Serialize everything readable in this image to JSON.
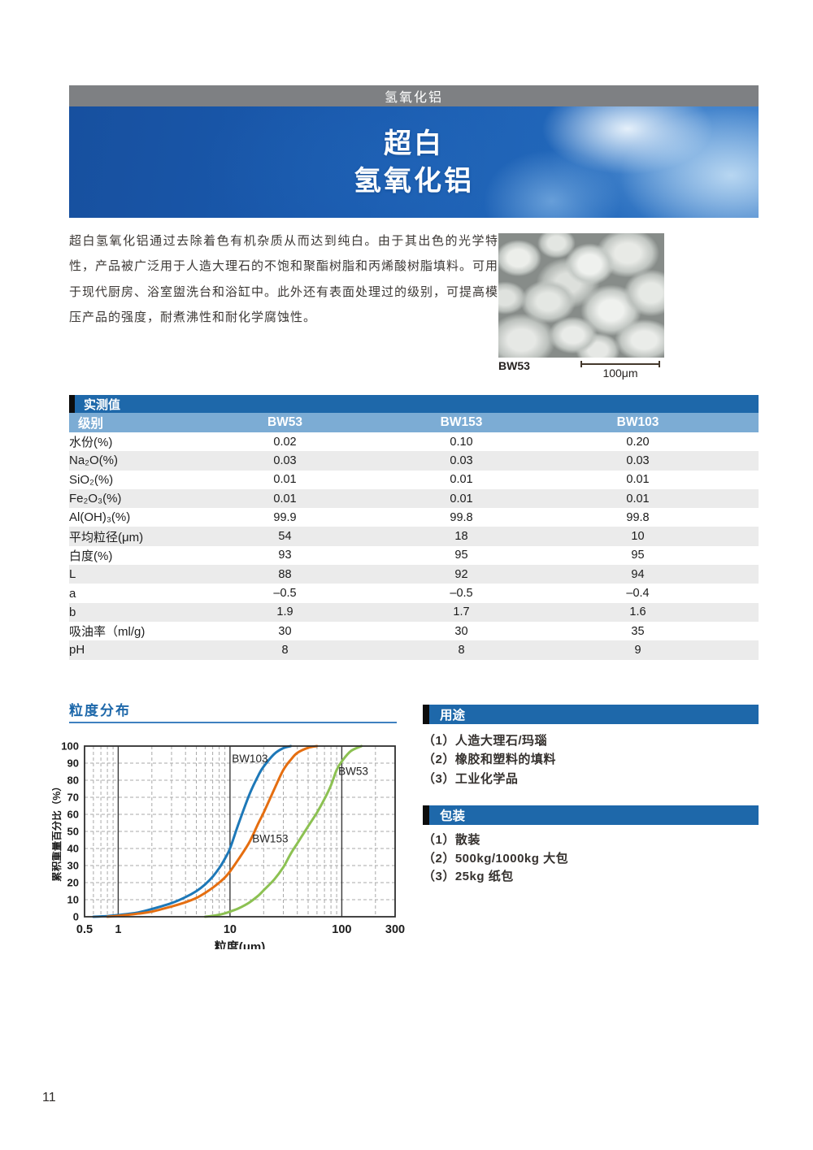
{
  "page": {
    "number": "11"
  },
  "header": {
    "category": "氢氧化铝",
    "title_line1": "超白",
    "title_line2": "氢氧化铝"
  },
  "intro": {
    "text": "超白氢氧化铝通过去除着色有机杂质从而达到纯白。由于其出色的光学特性，产品被广泛用于人造大理石的不饱和聚酯树脂和丙烯酸树脂填料。可用于现代厨房、浴室盥洗台和浴缸中。此外还有表面处理过的级别，可提高模压产品的强度，耐煮沸性和耐化学腐蚀性。"
  },
  "figure": {
    "label": "BW53",
    "scale_label": "100μm"
  },
  "table": {
    "title": "实测值",
    "grade_label": "级别",
    "columns": [
      "BW53",
      "BW153",
      "BW103"
    ],
    "rows": [
      {
        "label": "水份(%)",
        "values": [
          "0.02",
          "0.10",
          "0.20"
        ]
      },
      {
        "label": "Na₂O(%)",
        "values": [
          "0.03",
          "0.03",
          "0.03"
        ]
      },
      {
        "label": "SiO₂(%)",
        "values": [
          "0.01",
          "0.01",
          "0.01"
        ]
      },
      {
        "label": "Fe₂O₃(%)",
        "values": [
          "0.01",
          "0.01",
          "0.01"
        ]
      },
      {
        "label": "Al(OH)₃(%)",
        "values": [
          "99.9",
          "99.8",
          "99.8"
        ]
      },
      {
        "label": "平均粒径(μm)",
        "values": [
          "54",
          "18",
          "10"
        ]
      },
      {
        "label": "白度(%)",
        "values": [
          "93",
          "95",
          "95"
        ]
      },
      {
        "label": "L",
        "values": [
          "88",
          "92",
          "94"
        ]
      },
      {
        "label": "a",
        "values": [
          "–0.5",
          "–0.5",
          "–0.4"
        ]
      },
      {
        "label": "b",
        "values": [
          "1.9",
          "1.7",
          "1.6"
        ]
      },
      {
        "label": "吸油率（ml/g)",
        "values": [
          "30",
          "30",
          "35"
        ]
      },
      {
        "label": "pH",
        "values": [
          "8",
          "8",
          "9"
        ]
      }
    ]
  },
  "applications": {
    "title": "用途",
    "items": [
      "（1）人造大理石/玛瑙",
      "（2）橡胶和塑料的填料",
      "（3）工业化学品"
    ]
  },
  "packaging": {
    "title": "包装",
    "items": [
      "（1）散装",
      "（2）500kg/1000kg 大包",
      "（3）25kg 纸包"
    ]
  },
  "chart_data": {
    "type": "line",
    "title": "粒度分布",
    "xlabel": "粒度(μm)",
    "ylabel": "累积重量百分比（%）",
    "x_scale": "log",
    "xlim": [
      0.5,
      300
    ],
    "ylim": [
      0,
      100
    ],
    "x_ticks": [
      0.5,
      1,
      10,
      100,
      300
    ],
    "x_major": [
      1,
      10,
      100
    ],
    "x_minor": [
      0.6,
      0.7,
      0.8,
      0.9,
      2,
      3,
      4,
      5,
      6,
      7,
      8,
      9,
      20,
      30,
      40,
      50,
      60,
      70,
      80,
      90,
      200
    ],
    "y_ticks": [
      0,
      10,
      20,
      30,
      40,
      50,
      60,
      70,
      80,
      90,
      100
    ],
    "grid": true,
    "legend_position": "inline-labels",
    "series": [
      {
        "name": "BW103",
        "color": "#1d78b8",
        "label_at": [
          10.4,
          90.5
        ],
        "points": [
          [
            0.6,
            0
          ],
          [
            0.8,
            0.4
          ],
          [
            1,
            1
          ],
          [
            1.5,
            2.5
          ],
          [
            2,
            4.5
          ],
          [
            3,
            8
          ],
          [
            4,
            11.5
          ],
          [
            5,
            15
          ],
          [
            6,
            19
          ],
          [
            7,
            23.5
          ],
          [
            8,
            28.5
          ],
          [
            9,
            34
          ],
          [
            10,
            40
          ],
          [
            12,
            55
          ],
          [
            15,
            72
          ],
          [
            18,
            83
          ],
          [
            20,
            88
          ],
          [
            25,
            95.5
          ],
          [
            30,
            98.8
          ],
          [
            35,
            100
          ]
        ]
      },
      {
        "name": "BW153",
        "color": "#e56e10",
        "label_at": [
          15.8,
          43.5
        ],
        "points": [
          [
            0.8,
            0
          ],
          [
            1,
            0.5
          ],
          [
            1.5,
            1.8
          ],
          [
            2,
            3
          ],
          [
            3,
            6
          ],
          [
            4,
            8.5
          ],
          [
            5,
            11
          ],
          [
            6,
            14
          ],
          [
            7,
            17
          ],
          [
            8,
            20
          ],
          [
            9,
            23
          ],
          [
            10,
            26.5
          ],
          [
            12,
            34
          ],
          [
            15,
            44
          ],
          [
            18,
            55
          ],
          [
            20,
            61
          ],
          [
            25,
            75
          ],
          [
            30,
            86
          ],
          [
            35,
            92
          ],
          [
            40,
            96
          ],
          [
            50,
            99
          ],
          [
            60,
            100
          ]
        ]
      },
      {
        "name": "BW53",
        "color": "#8cc152",
        "label_at": [
          93,
          83
        ],
        "points": [
          [
            6,
            0
          ],
          [
            7,
            0.5
          ],
          [
            8,
            1.2
          ],
          [
            9,
            2
          ],
          [
            10,
            3
          ],
          [
            12,
            5
          ],
          [
            15,
            8.5
          ],
          [
            18,
            12.5
          ],
          [
            20,
            15.5
          ],
          [
            25,
            22
          ],
          [
            30,
            29
          ],
          [
            35,
            37
          ],
          [
            40,
            43
          ],
          [
            50,
            53
          ],
          [
            60,
            61
          ],
          [
            70,
            69
          ],
          [
            80,
            77
          ],
          [
            90,
            86
          ],
          [
            100,
            91
          ],
          [
            120,
            97
          ],
          [
            150,
            100
          ]
        ]
      }
    ]
  },
  "colors": {
    "accent_blue": "#1e68aa",
    "grade_row_blue": "#7cacd4",
    "category_bar_gray": "#7e8083",
    "alt_row_gray": "#ebebeb"
  }
}
